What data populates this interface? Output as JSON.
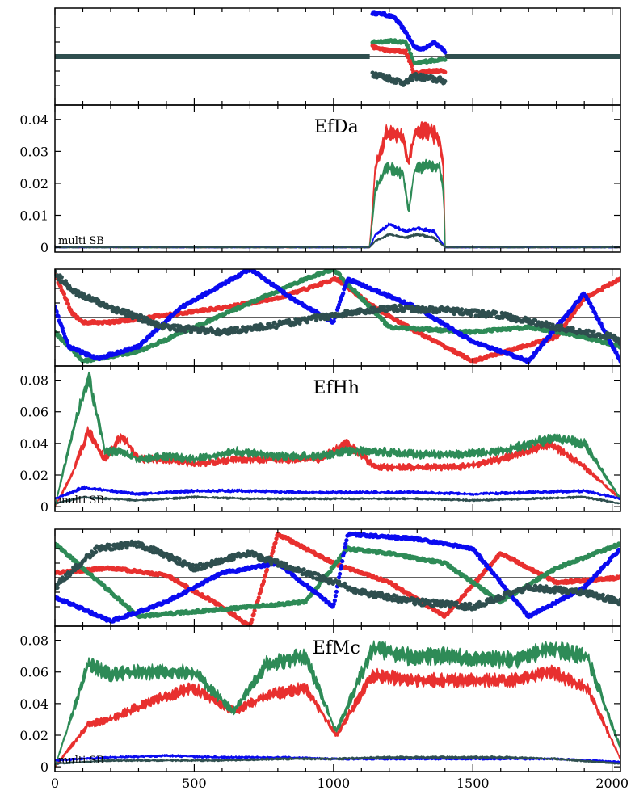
{
  "figure": {
    "x_ticks": [
      0,
      500,
      1000,
      1500,
      2000
    ],
    "xlim": [
      0,
      2030
    ],
    "colors": {
      "red": "#e8302f",
      "green": "#2e8b57",
      "blue": "#0b0bf0",
      "dark": "#2f4f4f"
    }
  },
  "chart_data": [
    {
      "type": "scatter",
      "panel": "EfDa-phase",
      "xlim": [
        0,
        2030
      ],
      "ylim": [
        -1,
        1
      ],
      "series": [
        {
          "color": "dark",
          "x": [
            0,
            1130
          ],
          "y": [
            0,
            0
          ]
        },
        {
          "color": "dark",
          "x": [
            1400,
            2030
          ],
          "y": [
            0,
            0
          ]
        },
        {
          "color": "blue",
          "x": [
            1140,
            1180,
            1220,
            1260,
            1290,
            1320,
            1360,
            1400
          ],
          "y": [
            0.9,
            0.88,
            0.8,
            0.5,
            0.2,
            0.15,
            0.3,
            0.1
          ]
        },
        {
          "color": "green",
          "x": [
            1140,
            1200,
            1260,
            1290,
            1330,
            1400
          ],
          "y": [
            0.3,
            0.32,
            0.3,
            -0.15,
            -0.1,
            -0.05
          ]
        },
        {
          "color": "red",
          "x": [
            1140,
            1200,
            1260,
            1290,
            1340,
            1400
          ],
          "y": [
            0.2,
            0.12,
            0.1,
            -0.35,
            -0.3,
            -0.3
          ]
        },
        {
          "color": "dark",
          "x": [
            1140,
            1200,
            1260,
            1290,
            1340,
            1400
          ],
          "y": [
            -0.35,
            -0.45,
            -0.55,
            -0.4,
            -0.45,
            -0.5
          ]
        }
      ]
    },
    {
      "type": "area",
      "panel": "EfDa-amplitude",
      "title": "EfDa",
      "annotation": "multi SB",
      "xlim": [
        0,
        2030
      ],
      "ylim": [
        -0.0015,
        0.0445
      ],
      "yticks": [
        0,
        0.01,
        0.02,
        0.03,
        0.04
      ],
      "ytick_labels": [
        "0",
        "0.01",
        "0.02",
        "0.03",
        "0.04"
      ],
      "series": [
        {
          "color": "red",
          "x": [
            0,
            1130,
            1150,
            1190,
            1250,
            1270,
            1290,
            1330,
            1380,
            1395,
            1400,
            2030
          ],
          "y": [
            0,
            0,
            0.025,
            0.036,
            0.034,
            0.026,
            0.035,
            0.037,
            0.034,
            0.025,
            0,
            0
          ]
        },
        {
          "color": "green",
          "x": [
            0,
            1130,
            1150,
            1190,
            1250,
            1270,
            1290,
            1330,
            1380,
            1395,
            1400,
            2030
          ],
          "y": [
            0,
            0,
            0.018,
            0.025,
            0.023,
            0.011,
            0.024,
            0.026,
            0.025,
            0.018,
            0,
            0
          ]
        },
        {
          "color": "blue",
          "x": [
            0,
            1130,
            1150,
            1200,
            1260,
            1300,
            1360,
            1400,
            2030
          ],
          "y": [
            0,
            0,
            0.004,
            0.007,
            0.005,
            0.006,
            0.005,
            0,
            0
          ]
        },
        {
          "color": "dark",
          "x": [
            0,
            1130,
            1150,
            1200,
            1260,
            1300,
            1360,
            1400,
            2030
          ],
          "y": [
            0,
            0,
            0.002,
            0.004,
            0.003,
            0.004,
            0.003,
            0,
            0
          ]
        }
      ]
    },
    {
      "type": "scatter",
      "panel": "EfHh-phase",
      "xlim": [
        0,
        2030
      ],
      "ylim": [
        -1,
        1
      ],
      "series": [
        {
          "color": "red",
          "x": [
            0,
            30,
            60,
            100,
            200,
            400,
            600,
            800,
            1010,
            1150,
            1300,
            1500,
            1800,
            1900,
            2030
          ],
          "y": [
            0.9,
            0.5,
            0.1,
            -0.1,
            -0.1,
            0.05,
            0.2,
            0.4,
            0.8,
            0.2,
            -0.3,
            -0.9,
            -0.4,
            0.4,
            0.8
          ]
        },
        {
          "color": "green",
          "x": [
            0,
            100,
            300,
            500,
            700,
            900,
            1000,
            1200,
            1500,
            1700,
            1900,
            2030
          ],
          "y": [
            -0.3,
            -0.9,
            -0.7,
            -0.2,
            0.3,
            0.8,
            1.0,
            -0.2,
            -0.3,
            -0.2,
            -0.4,
            -0.6
          ]
        },
        {
          "color": "blue",
          "x": [
            0,
            50,
            150,
            300,
            450,
            700,
            850,
            1000,
            1050,
            1300,
            1500,
            1700,
            1900,
            2030
          ],
          "y": [
            0.2,
            -0.6,
            -0.85,
            -0.6,
            0.2,
            1.0,
            0.4,
            -0.1,
            0.8,
            0.2,
            -0.5,
            -0.9,
            0.5,
            -0.9
          ]
        },
        {
          "color": "dark",
          "x": [
            0,
            80,
            200,
            400,
            600,
            800,
            1000,
            1200,
            1400,
            1600,
            1800,
            2000,
            2030
          ],
          "y": [
            0.9,
            0.5,
            0.2,
            -0.2,
            -0.3,
            -0.15,
            0.05,
            0.2,
            0.15,
            0.05,
            -0.2,
            -0.4,
            -0.5
          ]
        }
      ]
    },
    {
      "type": "area",
      "panel": "EfHh-amplitude",
      "title": "EfHh",
      "annotation": "multi SB",
      "xlim": [
        0,
        2030
      ],
      "ylim": [
        -0.003,
        0.089
      ],
      "yticks": [
        0,
        0.02,
        0.04,
        0.06,
        0.08
      ],
      "ytick_labels": [
        "0",
        "0.02",
        "0.04",
        "0.06",
        "0.08"
      ],
      "series": [
        {
          "color": "red",
          "x": [
            0,
            60,
            120,
            180,
            240,
            300,
            400,
            500,
            650,
            800,
            950,
            1050,
            1150,
            1300,
            1450,
            1600,
            1780,
            1900,
            2030
          ],
          "y": [
            0,
            0.02,
            0.048,
            0.03,
            0.045,
            0.03,
            0.03,
            0.027,
            0.03,
            0.03,
            0.03,
            0.04,
            0.025,
            0.025,
            0.025,
            0.03,
            0.04,
            0.025,
            0.005
          ]
        },
        {
          "color": "green",
          "x": [
            0,
            60,
            120,
            180,
            240,
            300,
            400,
            500,
            650,
            800,
            950,
            1050,
            1150,
            1300,
            1450,
            1600,
            1780,
            1900,
            2030
          ],
          "y": [
            0,
            0.045,
            0.082,
            0.035,
            0.035,
            0.03,
            0.032,
            0.03,
            0.035,
            0.032,
            0.032,
            0.035,
            0.035,
            0.033,
            0.033,
            0.035,
            0.043,
            0.04,
            0.005
          ]
        },
        {
          "color": "blue",
          "x": [
            0,
            100,
            300,
            500,
            700,
            900,
            1100,
            1300,
            1500,
            1700,
            1900,
            2030
          ],
          "y": [
            0.005,
            0.012,
            0.008,
            0.01,
            0.01,
            0.009,
            0.009,
            0.009,
            0.008,
            0.009,
            0.01,
            0.005
          ]
        },
        {
          "color": "dark",
          "x": [
            0,
            100,
            300,
            500,
            700,
            900,
            1100,
            1300,
            1500,
            1700,
            1900,
            2030
          ],
          "y": [
            0.002,
            0.006,
            0.004,
            0.006,
            0.005,
            0.005,
            0.005,
            0.005,
            0.004,
            0.005,
            0.006,
            0.002
          ]
        }
      ]
    },
    {
      "type": "scatter",
      "panel": "EfMc-phase",
      "xlim": [
        0,
        2030
      ],
      "ylim": [
        -1,
        1
      ],
      "series": [
        {
          "color": "red",
          "x": [
            0,
            200,
            400,
            600,
            700,
            800,
            1000,
            1200,
            1400,
            1600,
            1800,
            2030
          ],
          "y": [
            0.1,
            0.2,
            0.05,
            -0.6,
            -1.0,
            0.9,
            0.3,
            -0.1,
            -0.8,
            0.5,
            -0.1,
            0.0
          ]
        },
        {
          "color": "green",
          "x": [
            0,
            300,
            500,
            700,
            900,
            1050,
            1200,
            1400,
            1600,
            1800,
            2030
          ],
          "y": [
            0.7,
            -0.8,
            -0.7,
            -0.6,
            -0.5,
            0.6,
            0.5,
            0.3,
            -0.5,
            0.2,
            0.7
          ]
        },
        {
          "color": "blue",
          "x": [
            0,
            200,
            400,
            600,
            800,
            1000,
            1050,
            1300,
            1500,
            1700,
            1900,
            2030
          ],
          "y": [
            -0.4,
            -0.9,
            -0.5,
            0.1,
            0.3,
            -0.6,
            0.9,
            0.8,
            0.6,
            -0.8,
            -0.2,
            0.6
          ]
        },
        {
          "color": "dark",
          "x": [
            0,
            150,
            300,
            500,
            700,
            900,
            1100,
            1300,
            1500,
            1700,
            1900,
            2030
          ],
          "y": [
            -0.2,
            0.6,
            0.7,
            0.2,
            0.5,
            0.1,
            -0.3,
            -0.5,
            -0.6,
            -0.2,
            -0.3,
            -0.5
          ]
        }
      ]
    },
    {
      "type": "area",
      "panel": "EfMc-amplitude",
      "title": "EfMc",
      "annotation": "multi SB",
      "xlim": [
        0,
        2030
      ],
      "ylim": [
        -0.003,
        0.089
      ],
      "yticks": [
        0,
        0.02,
        0.04,
        0.06,
        0.08
      ],
      "ytick_labels": [
        "0",
        "0.02",
        "0.04",
        "0.06",
        "0.08"
      ],
      "series": [
        {
          "color": "red",
          "x": [
            0,
            120,
            200,
            260,
            400,
            500,
            640,
            760,
            900,
            1010,
            1140,
            1270,
            1400,
            1530,
            1660,
            1780,
            1910,
            2030
          ],
          "y": [
            0,
            0.027,
            0.03,
            0.035,
            0.045,
            0.05,
            0.035,
            0.045,
            0.05,
            0.02,
            0.058,
            0.055,
            0.055,
            0.055,
            0.055,
            0.06,
            0.05,
            0.005
          ]
        },
        {
          "color": "green",
          "x": [
            0,
            120,
            200,
            260,
            400,
            500,
            640,
            760,
            900,
            1010,
            1140,
            1270,
            1400,
            1530,
            1660,
            1780,
            1910,
            2030
          ],
          "y": [
            0,
            0.065,
            0.058,
            0.06,
            0.06,
            0.06,
            0.035,
            0.065,
            0.07,
            0.022,
            0.075,
            0.07,
            0.07,
            0.068,
            0.068,
            0.075,
            0.07,
            0.012
          ]
        },
        {
          "color": "blue",
          "x": [
            0,
            200,
            400,
            600,
            800,
            1000,
            1200,
            1400,
            1600,
            1800,
            2030
          ],
          "y": [
            0.004,
            0.006,
            0.007,
            0.006,
            0.006,
            0.005,
            0.005,
            0.005,
            0.005,
            0.005,
            0.003
          ]
        },
        {
          "color": "dark",
          "x": [
            0,
            200,
            400,
            600,
            800,
            1000,
            1200,
            1400,
            1600,
            1800,
            2030
          ],
          "y": [
            0.002,
            0.004,
            0.004,
            0.004,
            0.005,
            0.005,
            0.006,
            0.006,
            0.006,
            0.005,
            0.002
          ]
        }
      ]
    }
  ]
}
